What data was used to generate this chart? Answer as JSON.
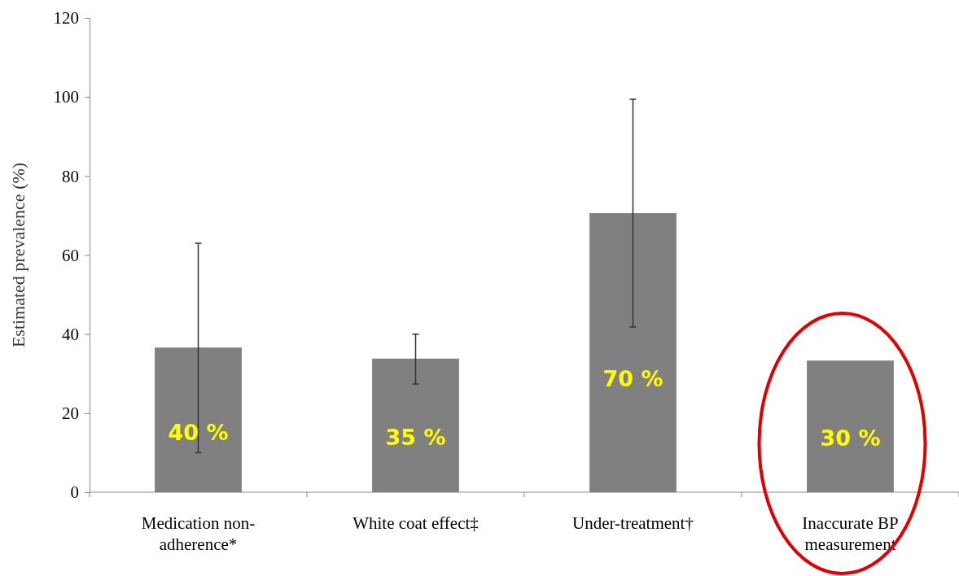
{
  "chart_data": {
    "type": "bar",
    "ylabel": "Estimated prevalence (%)",
    "categories": [
      "Medication non-adherence*",
      "White coat effect‡",
      "Under-treatment†",
      "Inaccurate BP measurement"
    ],
    "values": [
      36.6,
      33.8,
      70.6,
      33.3
    ],
    "errors": [
      [
        10,
        63
      ],
      [
        27.4,
        40
      ],
      [
        41.8,
        99.4
      ],
      null
    ],
    "annotations": [
      "40 %",
      "35 %",
      "70 %",
      "30 %"
    ],
    "color": "#808080",
    "ylim": [
      0,
      120
    ],
    "yticks": [
      0,
      20,
      40,
      60,
      80,
      100,
      120
    ],
    "grid": false
  }
}
